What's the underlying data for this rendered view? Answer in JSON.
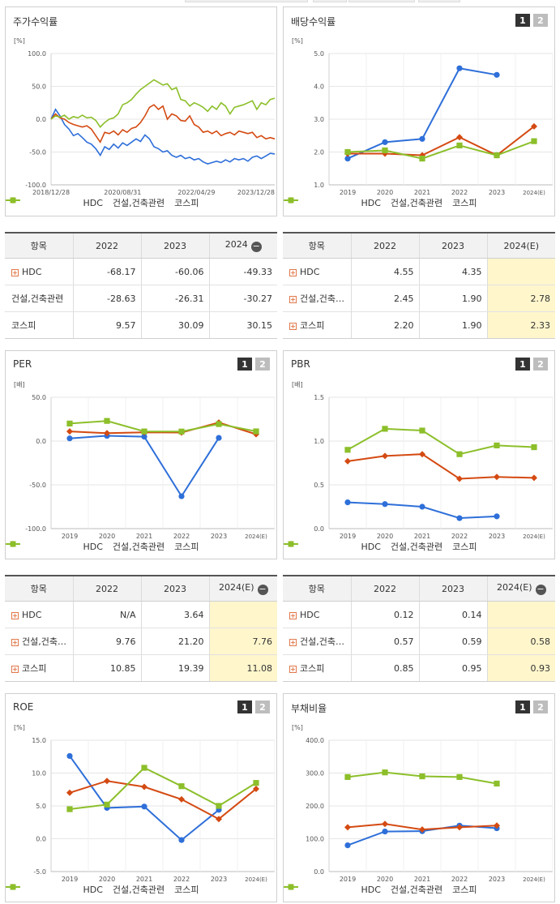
{
  "colors": {
    "hdc": "#2e6fd9",
    "construction": "#d44a12",
    "kospi": "#8cbf2a"
  },
  "legend": [
    "HDC",
    "건설,건축관련",
    "코스피"
  ],
  "panels": [
    {
      "id": "stock",
      "title": "주가수익률",
      "has_buttons": false,
      "buttons": [],
      "chart_data": {
        "type": "line",
        "unit": "[%]",
        "ylim": [
          -100,
          100
        ],
        "yticks": [
          "100.0",
          "50.0",
          "0.0",
          "-50.0",
          "-100.0"
        ],
        "xticks": [
          "2018/12/28",
          "2020/08/31",
          "2022/04/29",
          "2023/12/28"
        ],
        "xtick_pos": [
          0,
          0.32,
          0.65,
          1.0
        ],
        "series": [
          {
            "name": "HDC",
            "key": "hdc",
            "marker": "none",
            "x": [
              0,
              0.02,
              0.04,
              0.06,
              0.08,
              0.1,
              0.12,
              0.14,
              0.16,
              0.18,
              0.2,
              0.22,
              0.24,
              0.26,
              0.28,
              0.3,
              0.32,
              0.34,
              0.36,
              0.38,
              0.4,
              0.42,
              0.44,
              0.46,
              0.48,
              0.5,
              0.52,
              0.54,
              0.56,
              0.58,
              0.6,
              0.62,
              0.64,
              0.66,
              0.68,
              0.7,
              0.72,
              0.74,
              0.76,
              0.78,
              0.8,
              0.82,
              0.84,
              0.86,
              0.88,
              0.9,
              0.92,
              0.94,
              0.96,
              0.98,
              1.0
            ],
            "y": [
              0,
              15,
              5,
              -8,
              -15,
              -25,
              -22,
              -28,
              -35,
              -38,
              -45,
              -55,
              -42,
              -46,
              -38,
              -44,
              -36,
              -40,
              -35,
              -30,
              -34,
              -24,
              -30,
              -42,
              -45,
              -50,
              -48,
              -55,
              -58,
              -55,
              -60,
              -58,
              -62,
              -60,
              -65,
              -68,
              -66,
              -64,
              -66,
              -62,
              -65,
              -60,
              -62,
              -60,
              -64,
              -58,
              -56,
              -60,
              -56,
              -52,
              -53
            ]
          },
          {
            "name": "건설,건축관련",
            "key": "construction",
            "marker": "none",
            "x": [
              0,
              0.02,
              0.04,
              0.06,
              0.08,
              0.1,
              0.12,
              0.14,
              0.16,
              0.18,
              0.2,
              0.22,
              0.24,
              0.26,
              0.28,
              0.3,
              0.32,
              0.34,
              0.36,
              0.38,
              0.4,
              0.42,
              0.44,
              0.46,
              0.48,
              0.5,
              0.52,
              0.54,
              0.56,
              0.58,
              0.6,
              0.62,
              0.64,
              0.66,
              0.68,
              0.7,
              0.72,
              0.74,
              0.76,
              0.78,
              0.8,
              0.82,
              0.84,
              0.86,
              0.88,
              0.9,
              0.92,
              0.94,
              0.96,
              0.98,
              1.0
            ],
            "y": [
              0,
              8,
              2,
              0,
              -5,
              -8,
              -10,
              -12,
              -10,
              -15,
              -25,
              -35,
              -20,
              -22,
              -18,
              -24,
              -16,
              -20,
              -14,
              -12,
              -5,
              5,
              18,
              22,
              15,
              20,
              0,
              8,
              5,
              -2,
              -3,
              5,
              -8,
              -12,
              -20,
              -18,
              -22,
              -18,
              -25,
              -22,
              -20,
              -24,
              -18,
              -20,
              -22,
              -20,
              -28,
              -25,
              -30,
              -28,
              -30
            ]
          },
          {
            "name": "코스피",
            "key": "kospi",
            "marker": "none",
            "x": [
              0,
              0.02,
              0.04,
              0.06,
              0.08,
              0.1,
              0.12,
              0.14,
              0.16,
              0.18,
              0.2,
              0.22,
              0.24,
              0.26,
              0.28,
              0.3,
              0.32,
              0.34,
              0.36,
              0.38,
              0.4,
              0.42,
              0.44,
              0.46,
              0.48,
              0.5,
              0.52,
              0.54,
              0.56,
              0.58,
              0.6,
              0.62,
              0.64,
              0.66,
              0.68,
              0.7,
              0.72,
              0.74,
              0.76,
              0.78,
              0.8,
              0.82,
              0.84,
              0.86,
              0.88,
              0.9,
              0.92,
              0.94,
              0.96,
              0.98,
              1.0
            ],
            "y": [
              0,
              5,
              3,
              6,
              0,
              4,
              2,
              6,
              2,
              3,
              -2,
              -12,
              -5,
              0,
              2,
              8,
              22,
              25,
              30,
              38,
              45,
              50,
              55,
              60,
              56,
              52,
              54,
              45,
              48,
              30,
              28,
              20,
              25,
              22,
              18,
              12,
              20,
              15,
              25,
              20,
              8,
              18,
              20,
              22,
              25,
              28,
              15,
              25,
              22,
              30,
              32
            ]
          }
        ]
      }
    },
    {
      "id": "dividend",
      "title": "배당수익률",
      "has_buttons": true,
      "buttons": [
        "1",
        "2"
      ],
      "chart_data": {
        "type": "line",
        "unit": "[%]",
        "ylim": [
          1,
          5
        ],
        "yticks": [
          "5.0",
          "4.0",
          "3.0",
          "2.0",
          "1.0"
        ],
        "categories": [
          "2019",
          "2020",
          "2021",
          "2022",
          "2023",
          "2024(E)"
        ],
        "series": [
          {
            "name": "HDC",
            "key": "hdc",
            "marker": "circle",
            "values": [
              1.8,
              2.3,
              2.4,
              4.55,
              4.35,
              null
            ]
          },
          {
            "name": "건설,건축관련",
            "key": "construction",
            "marker": "diamond",
            "values": [
              1.95,
              1.95,
              1.9,
              2.45,
              1.9,
              2.78
            ]
          },
          {
            "name": "코스피",
            "key": "kospi",
            "marker": "square",
            "values": [
              2.0,
              2.05,
              1.8,
              2.2,
              1.9,
              2.33
            ]
          }
        ]
      }
    },
    {
      "id": "per",
      "title": "PER",
      "has_buttons": true,
      "buttons": [
        "1",
        "2"
      ],
      "chart_data": {
        "type": "line",
        "unit": "[배]",
        "ylim": [
          -100,
          50
        ],
        "yticks": [
          "50.0",
          "0.0",
          "-50.0",
          "-100.0"
        ],
        "categories": [
          "2019",
          "2020",
          "2021",
          "2022",
          "2023",
          "2024(E)"
        ],
        "series": [
          {
            "name": "HDC",
            "key": "hdc",
            "marker": "circle",
            "values": [
              3,
              6,
              5,
              -63,
              3.64,
              null
            ]
          },
          {
            "name": "건설,건축관련",
            "key": "construction",
            "marker": "diamond",
            "values": [
              11,
              9,
              10,
              9.76,
              21.2,
              7.76
            ]
          },
          {
            "name": "코스피",
            "key": "kospi",
            "marker": "square",
            "values": [
              20,
              23,
              11,
              10.85,
              19.39,
              11.08
            ]
          }
        ]
      }
    },
    {
      "id": "pbr",
      "title": "PBR",
      "has_buttons": true,
      "buttons": [
        "1",
        "2"
      ],
      "chart_data": {
        "type": "line",
        "unit": "[배]",
        "ylim": [
          0,
          1.5
        ],
        "yticks": [
          "1.5",
          "1.0",
          "0.5",
          "0.0"
        ],
        "categories": [
          "2019",
          "2020",
          "2021",
          "2022",
          "2023",
          "2024(E)"
        ],
        "series": [
          {
            "name": "HDC",
            "key": "hdc",
            "marker": "circle",
            "values": [
              0.3,
              0.28,
              0.25,
              0.12,
              0.14,
              null
            ]
          },
          {
            "name": "건설,건축관련",
            "key": "construction",
            "marker": "diamond",
            "values": [
              0.77,
              0.83,
              0.85,
              0.57,
              0.59,
              0.58
            ]
          },
          {
            "name": "코스피",
            "key": "kospi",
            "marker": "square",
            "values": [
              0.9,
              1.14,
              1.12,
              0.85,
              0.95,
              0.93
            ]
          }
        ]
      }
    },
    {
      "id": "roe",
      "title": "ROE",
      "has_buttons": true,
      "buttons": [
        "1",
        "2"
      ],
      "chart_data": {
        "type": "line",
        "unit": "[%]",
        "ylim": [
          -5,
          15
        ],
        "yticks": [
          "15.0",
          "10.0",
          "5.0",
          "0.0",
          "-5.0"
        ],
        "categories": [
          "2019",
          "2020",
          "2021",
          "2022",
          "2023",
          "2024(E)"
        ],
        "series": [
          {
            "name": "HDC",
            "key": "hdc",
            "marker": "circle",
            "values": [
              12.6,
              4.7,
              4.9,
              -0.2,
              4.4,
              null
            ]
          },
          {
            "name": "건설,건축관련",
            "key": "construction",
            "marker": "diamond",
            "values": [
              7.0,
              8.8,
              7.9,
              6.0,
              3.0,
              7.6
            ]
          },
          {
            "name": "코스피",
            "key": "kospi",
            "marker": "square",
            "values": [
              4.5,
              5.2,
              10.8,
              8.0,
              5.0,
              8.5
            ]
          }
        ]
      }
    },
    {
      "id": "debt",
      "title": "부채비율",
      "has_buttons": true,
      "buttons": [
        "1",
        "2"
      ],
      "chart_data": {
        "type": "line",
        "unit": "[%]",
        "ylim": [
          0,
          400
        ],
        "yticks": [
          "400.0",
          "300.0",
          "200.0",
          "100.0",
          "0.0"
        ],
        "categories": [
          "2019",
          "2020",
          "2021",
          "2022",
          "2023",
          "2024(E)"
        ],
        "series": [
          {
            "name": "HDC",
            "key": "hdc",
            "marker": "circle",
            "values": [
              80,
              122,
              123,
              140,
              132,
              null
            ]
          },
          {
            "name": "건설,건축관련",
            "key": "construction",
            "marker": "diamond",
            "values": [
              135,
              145,
              128,
              135,
              140,
              null
            ]
          },
          {
            "name": "코스피",
            "key": "kospi",
            "marker": "square",
            "values": [
              288,
              302,
              290,
              288,
              268,
              null
            ]
          }
        ]
      }
    }
  ],
  "tables": [
    {
      "id": "stock",
      "header": [
        "항목",
        "2022",
        "2023",
        "2024"
      ],
      "has_minus": true,
      "rows": [
        {
          "label": "HDC",
          "plus": true,
          "values": [
            "-68.17",
            "-60.06",
            "-49.33"
          ],
          "est": false
        },
        {
          "label": "건설,건축관련",
          "plus": false,
          "values": [
            "-28.63",
            "-26.31",
            "-30.27"
          ],
          "est": false
        },
        {
          "label": "코스피",
          "plus": false,
          "values": [
            "9.57",
            "30.09",
            "30.15"
          ],
          "est": false
        }
      ]
    },
    {
      "id": "dividend",
      "header": [
        "항목",
        "2022",
        "2023",
        "2024(E)"
      ],
      "has_minus": false,
      "rows": [
        {
          "label": "HDC",
          "plus": true,
          "values": [
            "4.55",
            "4.35",
            ""
          ],
          "est": true
        },
        {
          "label": "건설,건축관련",
          "plus": true,
          "values": [
            "2.45",
            "1.90",
            "2.78"
          ],
          "est": true
        },
        {
          "label": "코스피",
          "plus": true,
          "values": [
            "2.20",
            "1.90",
            "2.33"
          ],
          "est": true
        }
      ]
    },
    {
      "id": "per",
      "header": [
        "항목",
        "2022",
        "2023",
        "2024(E)"
      ],
      "has_minus": true,
      "rows": [
        {
          "label": "HDC",
          "plus": true,
          "values": [
            "N/A",
            "3.64",
            ""
          ],
          "est": true
        },
        {
          "label": "건설,건축관련",
          "plus": true,
          "values": [
            "9.76",
            "21.20",
            "7.76"
          ],
          "est": true
        },
        {
          "label": "코스피",
          "plus": true,
          "values": [
            "10.85",
            "19.39",
            "11.08"
          ],
          "est": true
        }
      ]
    },
    {
      "id": "pbr",
      "header": [
        "항목",
        "2022",
        "2023",
        "2024(E)"
      ],
      "has_minus": true,
      "rows": [
        {
          "label": "HDC",
          "plus": true,
          "values": [
            "0.12",
            "0.14",
            ""
          ],
          "est": true
        },
        {
          "label": "건설,건축관련",
          "plus": true,
          "values": [
            "0.57",
            "0.59",
            "0.58"
          ],
          "est": true
        },
        {
          "label": "코스피",
          "plus": true,
          "values": [
            "0.85",
            "0.95",
            "0.93"
          ],
          "est": true
        }
      ]
    }
  ]
}
